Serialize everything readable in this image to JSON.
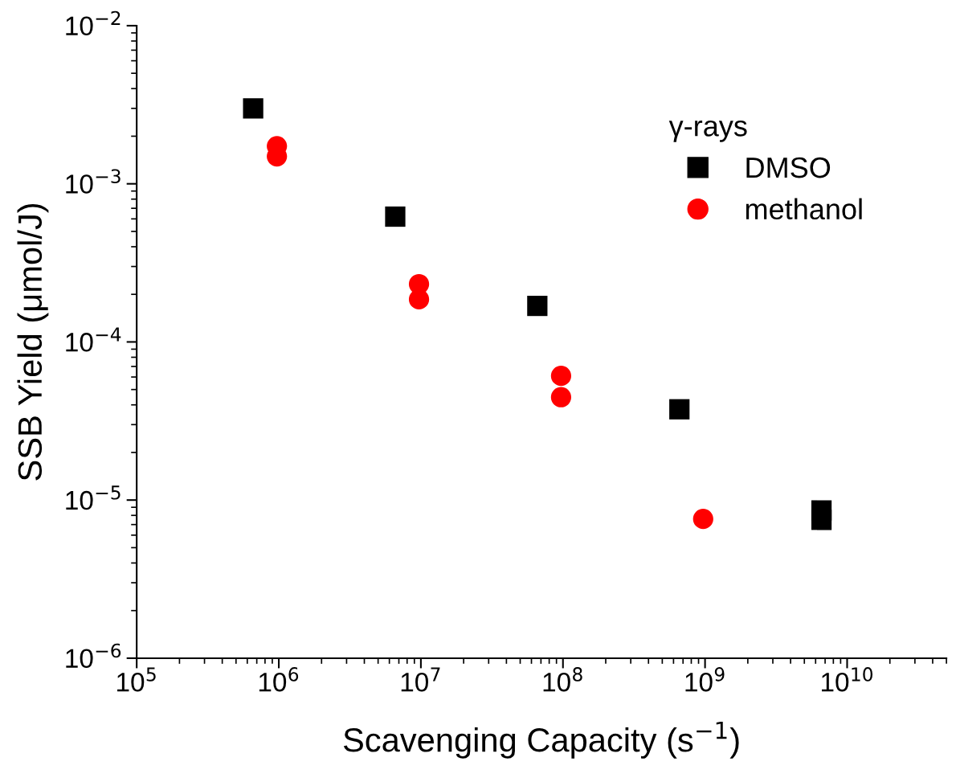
{
  "chart_data": {
    "type": "scatter",
    "xlabel": "Scavenging Capacity (s$^{−1}$)",
    "ylabel": "SSB Yield (μmol/J)",
    "legend_title": "γ-rays",
    "legend": "top right",
    "log": "xy",
    "grid": false,
    "xlim": [
      100000,
      50000000000
    ],
    "xticks": [
      {
        "value": 100000,
        "label": "10$^{5}$"
      },
      {
        "value": 1000000,
        "label": "10$^{6}$"
      },
      {
        "value": 10000000,
        "label": "10$^{7}$"
      },
      {
        "value": 100000000,
        "label": "10$^{8}$"
      },
      {
        "value": 1000000000,
        "label": "10$^{9}$"
      },
      {
        "value": 10000000000,
        "label": "10$^{10}$"
      }
    ],
    "ylim": [
      1e-06,
      0.01
    ],
    "yticks": [
      {
        "value": 1e-06,
        "label": "10$^{−6}$"
      },
      {
        "value": 1e-05,
        "label": "10$^{−5}$"
      },
      {
        "value": 0.0001,
        "label": "10$^{−4}$"
      },
      {
        "value": 0.001,
        "label": "10$^{−3}$"
      },
      {
        "value": 0.01,
        "label": "10$^{−2}$"
      }
    ],
    "series": [
      {
        "name": "DMSO",
        "color": "#000000",
        "marker": "square",
        "x": [
          660000,
          6600000,
          66000000,
          660000000,
          6600000000,
          6600000000
        ],
        "values": [
          0.003,
          0.00062,
          0.000169,
          3.75e-05,
          8.6e-06,
          7.5e-06
        ]
      },
      {
        "name": "methanol",
        "color": "#ff0000",
        "marker": "circle",
        "x": [
          970000,
          970000,
          9700000,
          9700000,
          97000000,
          97000000,
          970000000
        ],
        "values": [
          0.00173,
          0.00149,
          0.000232,
          0.000186,
          6.1e-05,
          4.47e-05,
          7.6e-06
        ]
      }
    ]
  }
}
